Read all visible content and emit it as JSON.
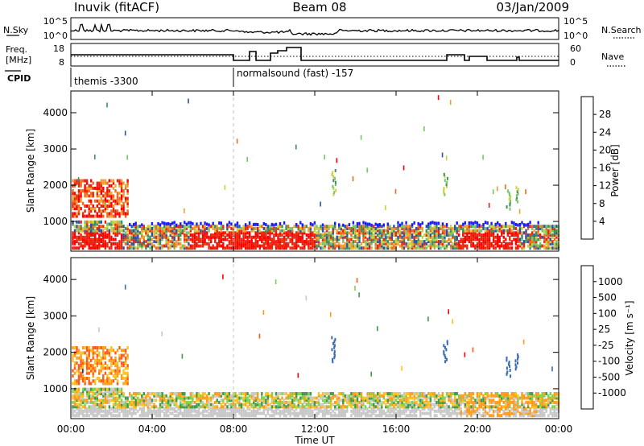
{
  "header": {
    "site": "Inuvik (fitACF)",
    "beam": "Beam 08",
    "date": "03/Jan/2009"
  },
  "nsky_panel": {
    "left_label": "N.Sky",
    "left_ticks": [
      "10^5",
      "10^0"
    ],
    "right_label": "N.Search",
    "right_ticks": [
      "10^5",
      "10^0"
    ]
  },
  "freq_panel": {
    "left_label_line1": "Freq.",
    "left_label_line2": "[MHz]",
    "left_ticks": [
      "18",
      "8"
    ],
    "right_label": "Nave",
    "right_ticks": [
      "60",
      "0"
    ]
  },
  "cpid_panel": {
    "label": "CPID",
    "segments": [
      {
        "label": "themis -3300",
        "start_hour": 0
      },
      {
        "label": "normalsound (fast) -157",
        "start_hour": 8
      }
    ]
  },
  "colors": {
    "power_scale": [
      "#1a1aff",
      "#2a52a8",
      "#3f8f5a",
      "#79c46a",
      "#c8d23c",
      "#f0a030",
      "#ef6a1a",
      "#e8280e",
      "#ff0000"
    ],
    "velocity_scale": [
      "#ff0000",
      "#ff5a1a",
      "#ff9a1a",
      "#ffc01a",
      "#c8c8c8",
      "#7ed24a",
      "#3c9a4a",
      "#3a6ab0",
      "#2a3ab0"
    ]
  },
  "chart_data": [
    {
      "type": "heatmap",
      "title": "Power",
      "ylabel": "Slant Range [km]",
      "xlabel": "",
      "x_ticks": [
        "00:00",
        "04:00",
        "08:00",
        "12:00",
        "16:00",
        "20:00",
        "00:00"
      ],
      "xlim_hours": [
        0,
        24
      ],
      "y_ticks": [
        "1000",
        "2000",
        "3000",
        "4000"
      ],
      "ylim": [
        180,
        4600
      ],
      "colorbar_label": "Power [dB]",
      "colorbar_ticks": [
        "4",
        "8",
        "12",
        "16",
        "20",
        "24",
        "28"
      ],
      "colorbar_range": [
        0,
        32
      ]
    },
    {
      "type": "heatmap",
      "title": "Velocity",
      "ylabel": "Slant Range [km]",
      "xlabel": "Time UT",
      "x_ticks": [
        "00:00",
        "04:00",
        "08:00",
        "12:00",
        "16:00",
        "20:00",
        "00:00"
      ],
      "xlim_hours": [
        0,
        24
      ],
      "y_ticks": [
        "1000",
        "2000",
        "3000",
        "4000"
      ],
      "ylim": [
        180,
        4600
      ],
      "colorbar_label": "Velocity [m s⁻¹]",
      "colorbar_ticks": [
        "1000",
        "500",
        "100",
        "25",
        "-25",
        "-100",
        "-500",
        "-1000"
      ]
    }
  ]
}
